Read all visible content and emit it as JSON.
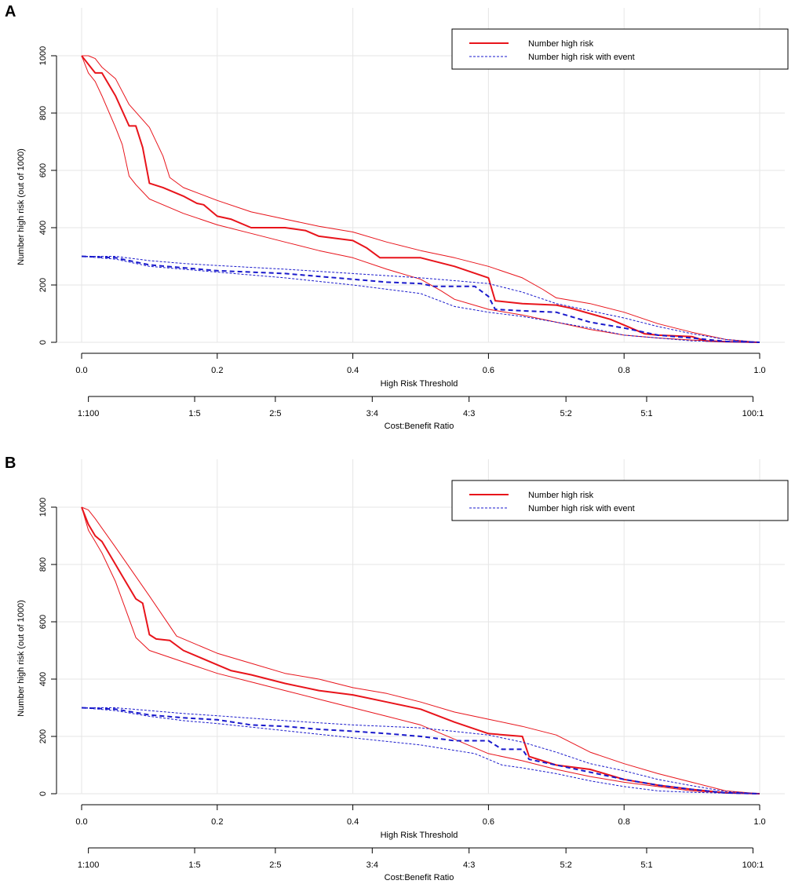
{
  "chart_data": [
    {
      "panel_label": "A",
      "type": "line",
      "ylabel": "Number high risk (out of 1000)",
      "xlabel": "High Risk Threshold",
      "x2label": "Cost:Benefit Ratio",
      "xlim": [
        0,
        1
      ],
      "ylim": [
        0,
        1000
      ],
      "x_ticks": [
        "0.0",
        "0.2",
        "0.4",
        "0.6",
        "0.8",
        "1.0"
      ],
      "y_ticks": [
        "0",
        "200",
        "400",
        "600",
        "800",
        "1000"
      ],
      "ratio_ticks": [
        {
          "label": "1:100",
          "x": 0.01
        },
        {
          "label": "1:5",
          "x": 0.1667
        },
        {
          "label": "2:5",
          "x": 0.2857
        },
        {
          "label": "3:4",
          "x": 0.4286
        },
        {
          "label": "4:3",
          "x": 0.5714
        },
        {
          "label": "5:2",
          "x": 0.7143
        },
        {
          "label": "5:1",
          "x": 0.8333
        },
        {
          "label": "100:1",
          "x": 0.9901
        }
      ],
      "legend": {
        "position": "top-right",
        "entries": [
          "Number high risk",
          "Number high risk with event"
        ]
      },
      "colors": {
        "high_risk": "#e8141b",
        "with_event": "#1a1acc",
        "grid": "#e6e6e6"
      },
      "series": [
        {
          "name": "Number high risk",
          "style": "solid-thick",
          "color": "#e8141b",
          "x": [
            0,
            0.01,
            0.02,
            0.03,
            0.05,
            0.07,
            0.08,
            0.09,
            0.1,
            0.12,
            0.15,
            0.17,
            0.18,
            0.19,
            0.2,
            0.22,
            0.25,
            0.3,
            0.33,
            0.35,
            0.4,
            0.42,
            0.44,
            0.5,
            0.55,
            0.6,
            0.61,
            0.65,
            0.7,
            0.72,
            0.75,
            0.78,
            0.8,
            0.83,
            0.85,
            0.9,
            0.92,
            0.95,
            1.0
          ],
          "y": [
            1000,
            970,
            940,
            940,
            860,
            755,
            755,
            680,
            555,
            540,
            510,
            485,
            480,
            460,
            440,
            430,
            400,
            400,
            390,
            370,
            355,
            330,
            295,
            295,
            265,
            225,
            145,
            135,
            130,
            120,
            100,
            80,
            60,
            30,
            25,
            20,
            5,
            2,
            0
          ]
        },
        {
          "name": "Number high risk upper",
          "style": "solid-thin",
          "color": "#e8141b",
          "x": [
            0,
            0.01,
            0.02,
            0.03,
            0.05,
            0.07,
            0.1,
            0.12,
            0.13,
            0.15,
            0.2,
            0.25,
            0.3,
            0.35,
            0.4,
            0.45,
            0.5,
            0.55,
            0.6,
            0.65,
            0.68,
            0.7,
            0.75,
            0.8,
            0.85,
            0.9,
            0.95,
            1.0
          ],
          "y": [
            1000,
            1000,
            990,
            960,
            920,
            830,
            750,
            650,
            575,
            540,
            495,
            455,
            430,
            405,
            385,
            350,
            320,
            295,
            265,
            225,
            185,
            155,
            135,
            105,
            65,
            35,
            10,
            0
          ]
        },
        {
          "name": "Number high risk lower",
          "style": "solid-thin",
          "color": "#e8141b",
          "x": [
            0,
            0.01,
            0.02,
            0.03,
            0.05,
            0.06,
            0.07,
            0.08,
            0.1,
            0.15,
            0.2,
            0.25,
            0.3,
            0.35,
            0.4,
            0.45,
            0.5,
            0.53,
            0.55,
            0.6,
            0.65,
            0.7,
            0.75,
            0.8,
            0.85,
            0.9,
            0.95,
            1.0
          ],
          "y": [
            1000,
            940,
            910,
            860,
            750,
            690,
            580,
            550,
            500,
            450,
            410,
            380,
            350,
            320,
            295,
            255,
            220,
            180,
            150,
            115,
            95,
            70,
            45,
            25,
            15,
            8,
            3,
            0
          ]
        },
        {
          "name": "Number high risk with event",
          "style": "dashed-thick",
          "color": "#1a1acc",
          "x": [
            0,
            0.05,
            0.07,
            0.09,
            0.1,
            0.15,
            0.2,
            0.25,
            0.3,
            0.35,
            0.4,
            0.45,
            0.5,
            0.52,
            0.55,
            0.58,
            0.6,
            0.61,
            0.65,
            0.7,
            0.75,
            0.8,
            0.85,
            0.9,
            0.95,
            1.0
          ],
          "y": [
            300,
            295,
            285,
            275,
            270,
            260,
            250,
            245,
            240,
            230,
            220,
            210,
            205,
            195,
            195,
            195,
            160,
            115,
            110,
            105,
            70,
            50,
            25,
            15,
            3,
            0
          ]
        },
        {
          "name": "Number high risk with event upper",
          "style": "dashed-thin",
          "color": "#1a1acc",
          "x": [
            0,
            0.05,
            0.1,
            0.15,
            0.2,
            0.3,
            0.4,
            0.5,
            0.55,
            0.6,
            0.65,
            0.7,
            0.75,
            0.8,
            0.85,
            0.9,
            0.95,
            1.0
          ],
          "y": [
            300,
            300,
            285,
            275,
            268,
            255,
            240,
            225,
            215,
            205,
            175,
            135,
            110,
            85,
            55,
            30,
            10,
            0
          ]
        },
        {
          "name": "Number high risk with event lower",
          "style": "dashed-thin",
          "color": "#1a1acc",
          "x": [
            0,
            0.05,
            0.1,
            0.15,
            0.2,
            0.3,
            0.4,
            0.5,
            0.55,
            0.6,
            0.65,
            0.7,
            0.75,
            0.8,
            0.85,
            0.9,
            0.95,
            1.0
          ],
          "y": [
            300,
            290,
            265,
            255,
            245,
            225,
            200,
            170,
            125,
            105,
            90,
            70,
            50,
            25,
            15,
            5,
            2,
            0
          ]
        }
      ]
    },
    {
      "panel_label": "B",
      "type": "line",
      "ylabel": "Number high risk (out of 1000)",
      "xlabel": "High Risk Threshold",
      "x2label": "Cost:Benefit Ratio",
      "xlim": [
        0,
        1
      ],
      "ylim": [
        0,
        1000
      ],
      "x_ticks": [
        "0.0",
        "0.2",
        "0.4",
        "0.6",
        "0.8",
        "1.0"
      ],
      "y_ticks": [
        "0",
        "200",
        "400",
        "600",
        "800",
        "1000"
      ],
      "ratio_ticks": [
        {
          "label": "1:100",
          "x": 0.01
        },
        {
          "label": "1:5",
          "x": 0.1667
        },
        {
          "label": "2:5",
          "x": 0.2857
        },
        {
          "label": "3:4",
          "x": 0.4286
        },
        {
          "label": "4:3",
          "x": 0.5714
        },
        {
          "label": "5:2",
          "x": 0.7143
        },
        {
          "label": "5:1",
          "x": 0.8333
        },
        {
          "label": "100:1",
          "x": 0.9901
        }
      ],
      "legend": {
        "position": "top-right",
        "entries": [
          "Number high risk",
          "Number high risk with event"
        ]
      },
      "colors": {
        "high_risk": "#e8141b",
        "with_event": "#1a1acc",
        "grid": "#e6e6e6"
      },
      "series": [
        {
          "name": "Number high risk",
          "style": "solid-thick",
          "color": "#e8141b",
          "x": [
            0,
            0.01,
            0.02,
            0.03,
            0.05,
            0.06,
            0.08,
            0.09,
            0.1,
            0.11,
            0.13,
            0.15,
            0.17,
            0.2,
            0.22,
            0.25,
            0.3,
            0.35,
            0.4,
            0.45,
            0.5,
            0.55,
            0.6,
            0.65,
            0.66,
            0.7,
            0.75,
            0.8,
            0.85,
            0.9,
            0.95,
            1.0
          ],
          "y": [
            1000,
            940,
            900,
            880,
            800,
            760,
            680,
            665,
            555,
            540,
            535,
            500,
            480,
            450,
            430,
            415,
            385,
            360,
            345,
            320,
            295,
            250,
            210,
            200,
            130,
            100,
            85,
            50,
            30,
            15,
            3,
            0
          ]
        },
        {
          "name": "Number high risk upper",
          "style": "solid-thin",
          "color": "#e8141b",
          "x": [
            0,
            0.01,
            0.02,
            0.05,
            0.1,
            0.12,
            0.14,
            0.2,
            0.25,
            0.3,
            0.35,
            0.4,
            0.45,
            0.5,
            0.55,
            0.6,
            0.65,
            0.7,
            0.75,
            0.8,
            0.85,
            0.9,
            0.95,
            1.0
          ],
          "y": [
            1000,
            990,
            960,
            860,
            690,
            620,
            550,
            490,
            455,
            420,
            400,
            370,
            350,
            320,
            285,
            260,
            235,
            205,
            145,
            105,
            70,
            40,
            10,
            0
          ]
        },
        {
          "name": "Number high risk lower",
          "style": "solid-thin",
          "color": "#e8141b",
          "x": [
            0,
            0.01,
            0.02,
            0.03,
            0.05,
            0.07,
            0.08,
            0.1,
            0.15,
            0.2,
            0.25,
            0.3,
            0.35,
            0.4,
            0.45,
            0.5,
            0.55,
            0.6,
            0.65,
            0.7,
            0.75,
            0.8,
            0.85,
            0.9,
            0.95,
            1.0
          ],
          "y": [
            1000,
            920,
            880,
            840,
            740,
            610,
            545,
            500,
            460,
            420,
            390,
            360,
            330,
            300,
            270,
            240,
            190,
            140,
            115,
            85,
            60,
            40,
            25,
            10,
            3,
            0
          ]
        },
        {
          "name": "Number high risk with event",
          "style": "dashed-thick",
          "color": "#1a1acc",
          "x": [
            0,
            0.05,
            0.1,
            0.15,
            0.2,
            0.25,
            0.3,
            0.35,
            0.4,
            0.45,
            0.5,
            0.55,
            0.6,
            0.62,
            0.65,
            0.66,
            0.7,
            0.75,
            0.8,
            0.85,
            0.9,
            0.95,
            1.0
          ],
          "y": [
            300,
            295,
            275,
            265,
            258,
            240,
            235,
            225,
            218,
            210,
            200,
            185,
            185,
            155,
            155,
            120,
            100,
            75,
            50,
            30,
            15,
            3,
            0
          ]
        },
        {
          "name": "Number high risk with event upper",
          "style": "dashed-thin",
          "color": "#1a1acc",
          "x": [
            0,
            0.05,
            0.1,
            0.15,
            0.2,
            0.3,
            0.4,
            0.5,
            0.6,
            0.65,
            0.7,
            0.75,
            0.8,
            0.85,
            0.9,
            0.95,
            1.0
          ],
          "y": [
            300,
            300,
            290,
            280,
            272,
            255,
            240,
            230,
            205,
            180,
            145,
            105,
            80,
            50,
            28,
            8,
            0
          ]
        },
        {
          "name": "Number high risk with event lower",
          "style": "dashed-thin",
          "color": "#1a1acc",
          "x": [
            0,
            0.05,
            0.1,
            0.15,
            0.2,
            0.3,
            0.4,
            0.5,
            0.58,
            0.6,
            0.62,
            0.65,
            0.7,
            0.75,
            0.8,
            0.85,
            0.9,
            0.95,
            1.0
          ],
          "y": [
            300,
            290,
            270,
            255,
            245,
            220,
            195,
            170,
            140,
            120,
            100,
            90,
            70,
            45,
            25,
            10,
            5,
            2,
            0
          ]
        }
      ]
    }
  ]
}
